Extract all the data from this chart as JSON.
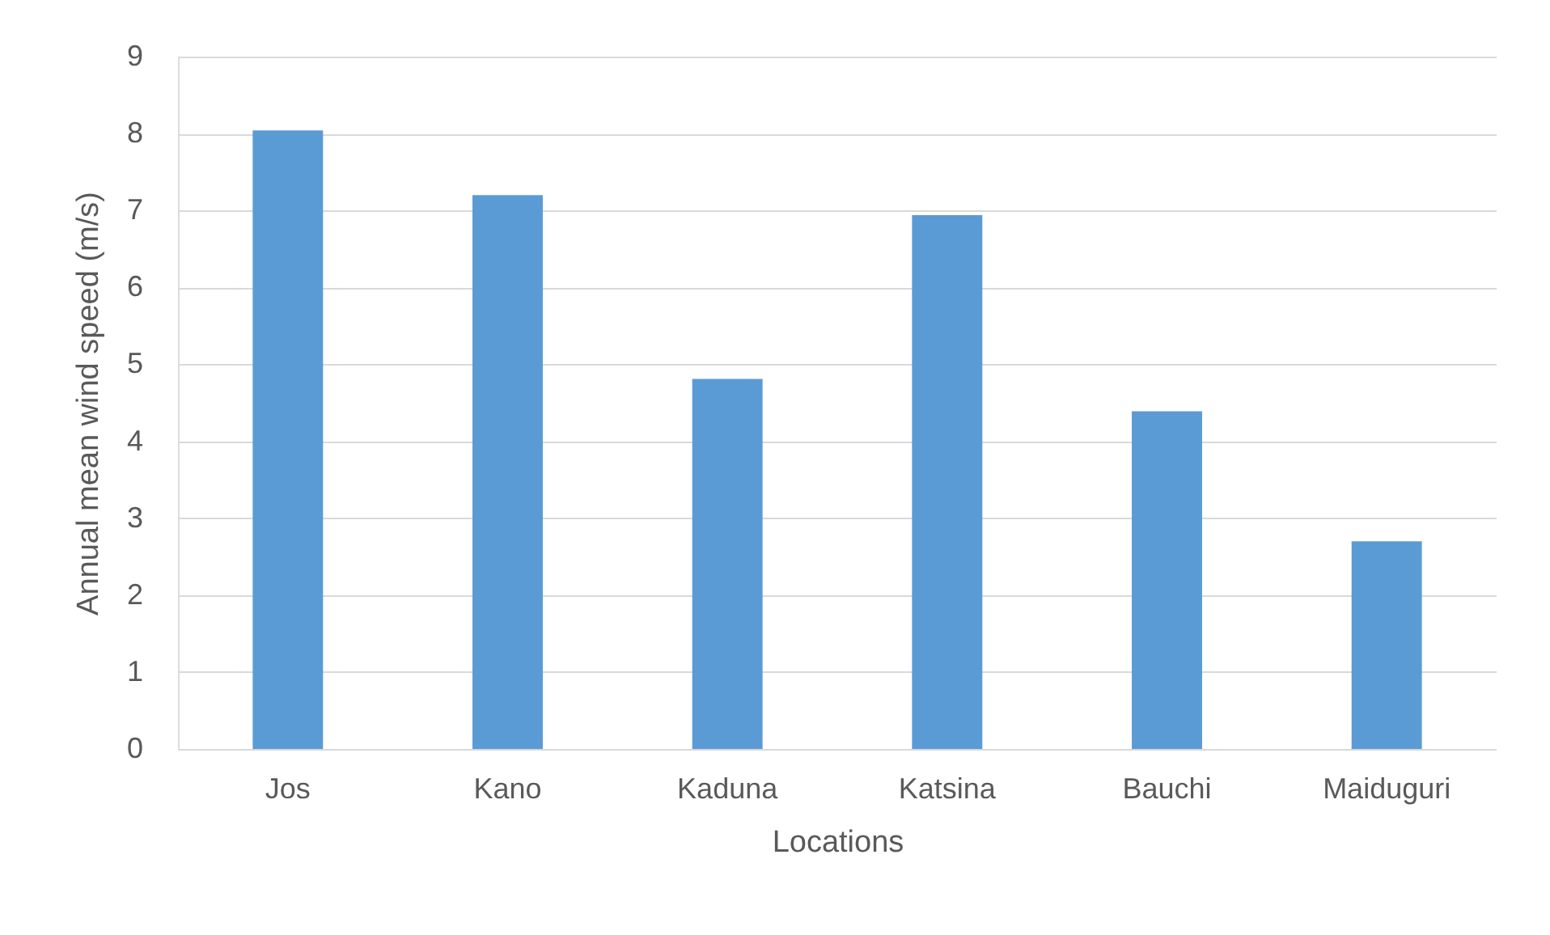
{
  "chart_data": {
    "type": "bar",
    "xlabel": "Locations",
    "ylabel": "Annual mean wind speed (m/s)",
    "categories": [
      "Jos",
      "Kano",
      "Kaduna",
      "Katsina",
      "Bauchi",
      "Maiduguri"
    ],
    "values": [
      8.04,
      7.2,
      4.81,
      6.94,
      4.39,
      2.7
    ],
    "color": "#5b9bd5",
    "ylim": [
      0,
      9
    ],
    "yticks": [
      0,
      1,
      2,
      3,
      4,
      5,
      6,
      7,
      8,
      9
    ],
    "grid": "y"
  }
}
